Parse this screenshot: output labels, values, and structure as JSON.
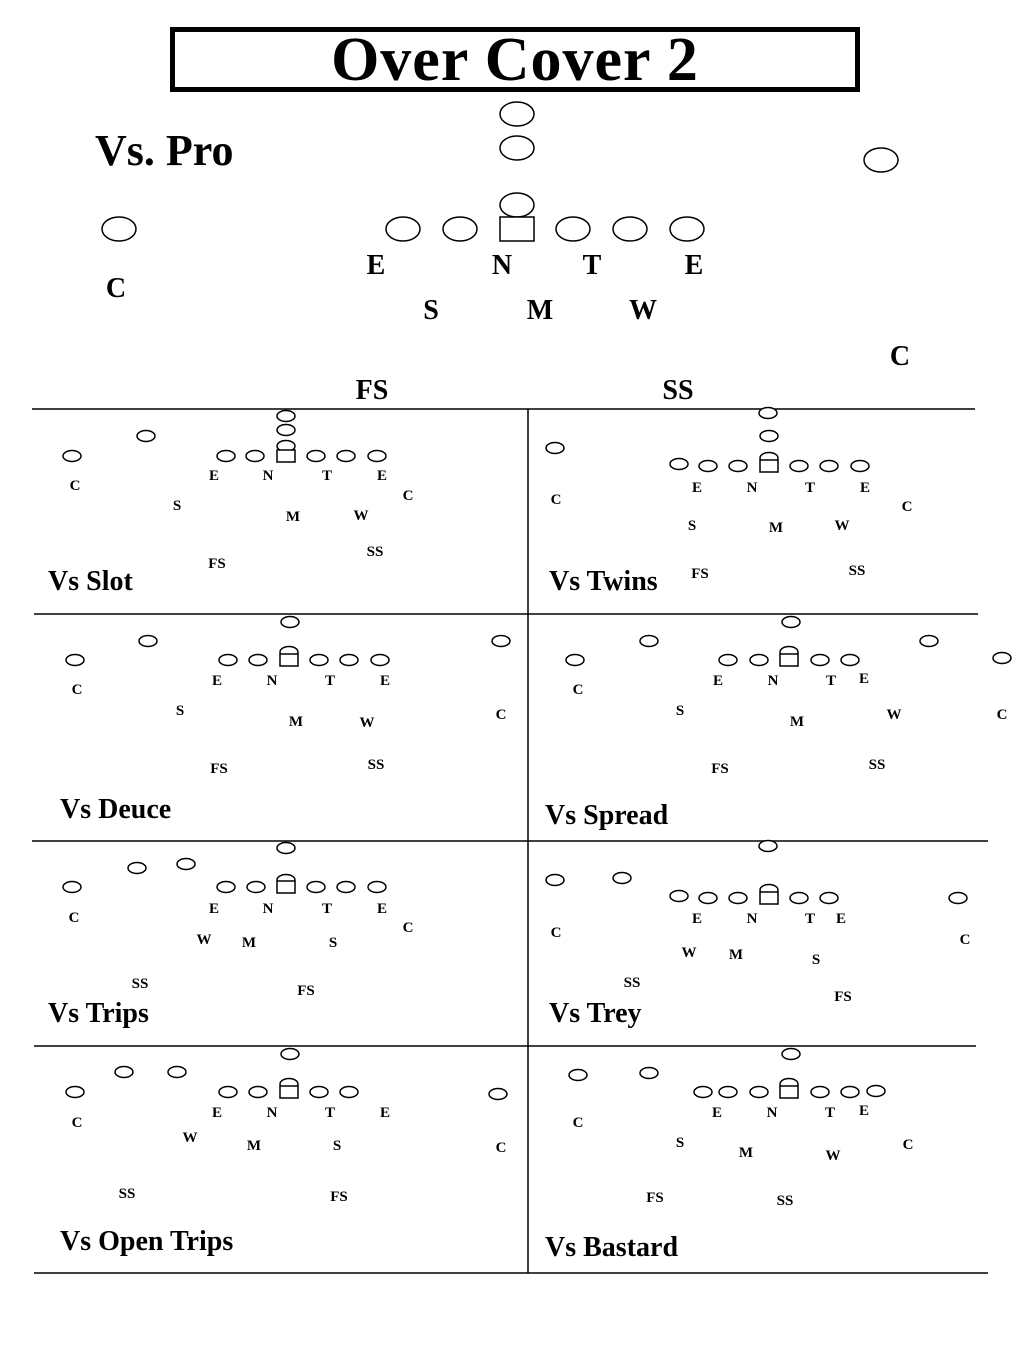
{
  "title": "Over Cover 2",
  "main": {
    "label": "Vs. Pro",
    "labels": [
      {
        "key": "c_left",
        "text": "C"
      },
      {
        "key": "e_left",
        "text": "E"
      },
      {
        "key": "n",
        "text": "N"
      },
      {
        "key": "t",
        "text": "T"
      },
      {
        "key": "e_right",
        "text": "E"
      },
      {
        "key": "s",
        "text": "S"
      },
      {
        "key": "m",
        "text": "M"
      },
      {
        "key": "w",
        "text": "W"
      },
      {
        "key": "c_right",
        "text": "C"
      },
      {
        "key": "fs",
        "text": "FS"
      },
      {
        "key": "ss",
        "text": "SS"
      }
    ]
  },
  "panels": [
    {
      "label": "Vs Slot",
      "positions": [
        "C",
        "E",
        "N",
        "T",
        "E",
        "C",
        "S",
        "M",
        "W",
        "FS",
        "SS"
      ]
    },
    {
      "label": "Vs Twins",
      "positions": [
        "C",
        "E",
        "N",
        "T",
        "E",
        "S",
        "M",
        "W",
        "C",
        "FS",
        "SS"
      ]
    },
    {
      "label": "Vs Deuce",
      "positions": [
        "C",
        "E",
        "N",
        "T",
        "E",
        "S",
        "M",
        "W",
        "C",
        "FS",
        "SS"
      ]
    },
    {
      "label": "Vs Spread",
      "positions": [
        "C",
        "E",
        "N",
        "T",
        "E",
        "S",
        "M",
        "W",
        "C",
        "FS",
        "SS"
      ]
    },
    {
      "label": "Vs Trips",
      "positions": [
        "C",
        "E",
        "N",
        "T",
        "E",
        "C",
        "W",
        "M",
        "S",
        "SS",
        "FS"
      ]
    },
    {
      "label": "Vs Trey",
      "positions": [
        "E",
        "N",
        "T",
        "E",
        "C",
        "W",
        "M",
        "C",
        "S",
        "SS",
        "FS"
      ]
    },
    {
      "label": "Vs Open Trips",
      "positions": [
        "C",
        "E",
        "N",
        "T",
        "E",
        "W",
        "M",
        "S",
        "C",
        "SS",
        "FS"
      ]
    },
    {
      "label": "Vs Bastard",
      "positions": [
        "E",
        "N",
        "T",
        "E",
        "C",
        "S",
        "M",
        "W",
        "C",
        "FS",
        "SS"
      ]
    }
  ]
}
